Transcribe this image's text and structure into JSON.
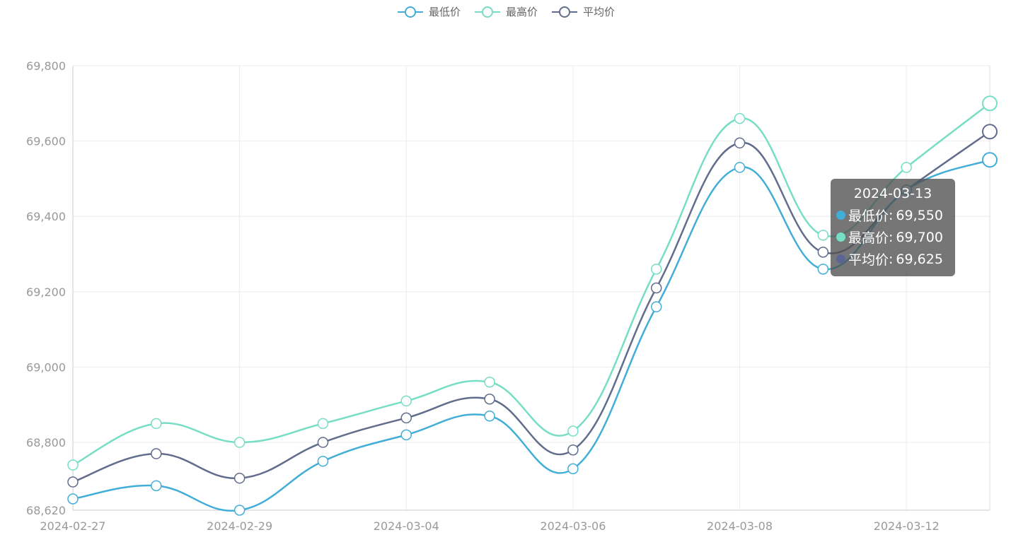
{
  "legend": [
    {
      "label": "最低价",
      "color": "#42aed8"
    },
    {
      "label": "最高价",
      "color": "#76dec4"
    },
    {
      "label": "平均价",
      "color": "#626c8c"
    }
  ],
  "tooltip": {
    "date": "2024-03-13",
    "rows": [
      {
        "name": "最低价",
        "value": "69,550",
        "color": "#42aed8"
      },
      {
        "name": "最高价",
        "value": "69,700",
        "color": "#76dec4"
      },
      {
        "name": "平均价",
        "value": "69,625",
        "color": "#5b6592"
      }
    ]
  },
  "chart_data": {
    "type": "line",
    "x": [
      "2024-02-27",
      "2024-02-28",
      "2024-02-29",
      "2024-03-01",
      "2024-03-04",
      "2024-03-05",
      "2024-03-06",
      "2024-03-07",
      "2024-03-08",
      "2024-03-11",
      "2024-03-12",
      "2024-03-13"
    ],
    "x_tick_labels": [
      "2024-02-27",
      "2024-02-29",
      "2024-03-04",
      "2024-03-06",
      "2024-03-08",
      "2024-03-12"
    ],
    "y_tick_labels": [
      "68,620",
      "68,800",
      "69,000",
      "69,200",
      "69,400",
      "69,600",
      "69,800"
    ],
    "y_ticks": [
      68620,
      68800,
      69000,
      69200,
      69400,
      69600,
      69800
    ],
    "ylim": [
      68620,
      69800
    ],
    "grid": true,
    "smooth": true,
    "series": [
      {
        "name": "最低价",
        "color": "#42aed8",
        "values": [
          68650,
          68685,
          68620,
          68750,
          68820,
          68870,
          68730,
          69160,
          69530,
          69260,
          69470,
          69550
        ]
      },
      {
        "name": "最高价",
        "color": "#76dec4",
        "values": [
          68740,
          68850,
          68800,
          68850,
          68910,
          68960,
          68830,
          69260,
          69660,
          69350,
          69530,
          69700
        ]
      },
      {
        "name": "平均价",
        "color": "#626c8c",
        "values": [
          68695,
          68770,
          68705,
          68800,
          68865,
          68915,
          68780,
          69210,
          69595,
          69305,
          69470,
          69625
        ]
      }
    ]
  }
}
